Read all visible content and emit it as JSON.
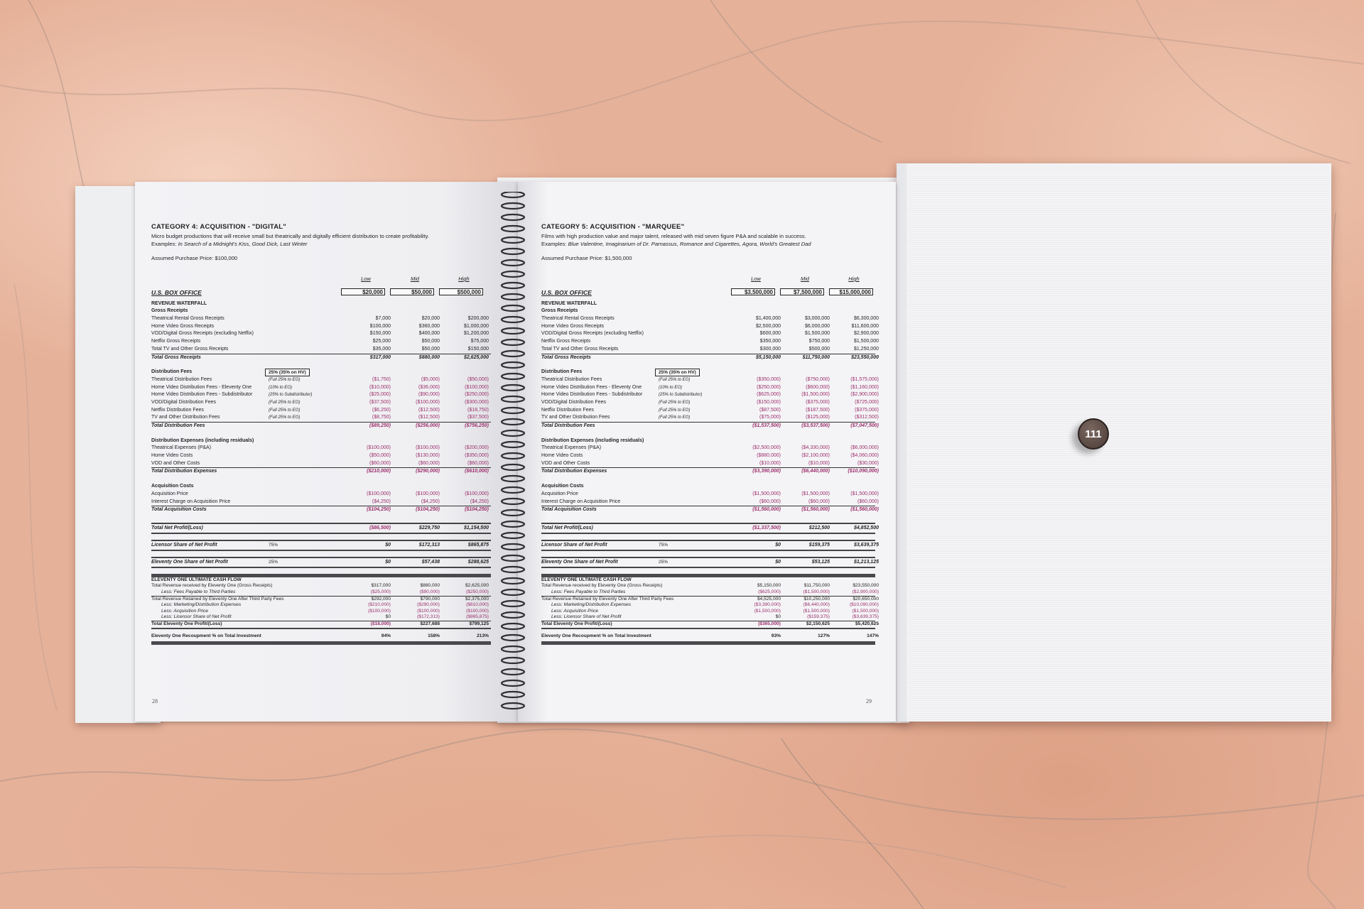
{
  "badge": {
    "label": "111"
  },
  "colors": {
    "negative": "#9c2f6c",
    "marble": "#e6b199",
    "page": "#f4f4f6"
  },
  "pages": [
    {
      "page_number": "28",
      "title": "CATEGORY 4:  ACQUISITION - \"DIGITAL\"",
      "description": "Micro budget productions that will receive small but theatrically and digitally efficient distribution to create profitability.",
      "examples_label": "Examples: ",
      "examples": "In Search of a Midnight's Kiss, Good Dick, Last Winter",
      "assumed": "Assumed Purchase Price: $100,000",
      "columns": [
        "Low",
        "Mid",
        "High"
      ],
      "box_office": {
        "label": "U.S. BOX OFFICE",
        "values": [
          "$20,000",
          "$50,000",
          "$500,000"
        ]
      },
      "waterfall_label": "REVENUE WATERFALL",
      "groups": [
        {
          "heading": "Gross Receipts",
          "rows": [
            {
              "label": "Theatrical Rental Gross Receipts",
              "values": [
                "$7,000",
                "$20,000",
                "$200,000"
              ]
            },
            {
              "label": "Home Video Gross Receipts",
              "values": [
                "$100,000",
                "$360,000",
                "$1,000,000"
              ]
            },
            {
              "label": "VOD/Digital Gross Receipts (excluding Netflix)",
              "values": [
                "$150,000",
                "$400,000",
                "$1,200,000"
              ]
            },
            {
              "label": "Netflix Gross Receipts",
              "values": [
                "$25,000",
                "$50,000",
                "$75,000"
              ]
            },
            {
              "label": "Total TV and Other Gross Receipts",
              "values": [
                "$35,000",
                "$50,000",
                "$150,000"
              ]
            }
          ],
          "total": {
            "label": "Total Gross Receipts",
            "values": [
              "$317,000",
              "$880,000",
              "$2,625,000"
            ]
          }
        },
        {
          "heading": "Distribution Fees",
          "note_box": "25% (35% on HV)",
          "rows": [
            {
              "label": "Theatrical Distribution Fees",
              "note": "(Full 25% to EO)",
              "values": [
                "($1,750)",
                "($5,000)",
                "($50,000)"
              ]
            },
            {
              "label": "Home Video Distribution Fees - Eleventy One",
              "note": "(10% to EO)",
              "values": [
                "($10,000)",
                "($36,000)",
                "($100,000)"
              ]
            },
            {
              "label": "Home Video Distribution Fees - Subdistributor",
              "note": "(25% to Subdistributor)",
              "values": [
                "($25,000)",
                "($90,000)",
                "($250,000)"
              ]
            },
            {
              "label": "VOD/Digital Distribution Fees",
              "note": "(Full 25% to EO)",
              "values": [
                "($37,500)",
                "($100,000)",
                "($300,000)"
              ]
            },
            {
              "label": "Netflix Distribution Fees",
              "note": "(Full 25% to EO)",
              "values": [
                "($6,250)",
                "($12,500)",
                "($18,750)"
              ]
            },
            {
              "label": "TV and Other Distribution Fees",
              "note": "(Full 25% to EO)",
              "values": [
                "($8,750)",
                "($12,500)",
                "($37,500)"
              ]
            }
          ],
          "total": {
            "label": "Total Distribution Fees",
            "values": [
              "($89,250)",
              "($256,000)",
              "($756,250)"
            ]
          }
        },
        {
          "heading": "Distribution Expenses (including residuals)",
          "rows": [
            {
              "label": "Theatrical Expenses (P&A)",
              "values": [
                "($100,000)",
                "($100,000)",
                "($200,000)"
              ]
            },
            {
              "label": "Home Video Costs",
              "values": [
                "($50,000)",
                "($130,000)",
                "($350,000)"
              ]
            },
            {
              "label": "VOD and Other Costs",
              "values": [
                "($60,000)",
                "($60,000)",
                "($60,000)"
              ]
            }
          ],
          "total": {
            "label": "Total Distribution Expenses",
            "values": [
              "($210,000)",
              "($290,000)",
              "($610,000)"
            ]
          }
        },
        {
          "heading": "Acquisition Costs",
          "rows": [
            {
              "label": "Acquisition Price",
              "values": [
                "($100,000)",
                "($100,000)",
                "($100,000)"
              ]
            },
            {
              "label": "Interest Charge on Acquisition Price",
              "values": [
                "($4,250)",
                "($4,250)",
                "($4,250)"
              ]
            }
          ],
          "total": {
            "label": "Total Acquisition Costs",
            "values": [
              "($104,250)",
              "($104,250)",
              "($104,250)"
            ]
          }
        }
      ],
      "summary": [
        {
          "label": "Total Net Profit/(Loss)",
          "values": [
            "($86,500)",
            "$229,750",
            "$1,154,500"
          ]
        },
        {
          "label": "Licensor Share of Net Profit",
          "note": "75%",
          "values": [
            "$0",
            "$172,313",
            "$865,875"
          ]
        },
        {
          "label": "Eleventy One Share of Net Profit",
          "note": "25%",
          "values": [
            "$0",
            "$57,438",
            "$288,625"
          ]
        }
      ],
      "cash_flow": {
        "heading": "ELEVENTY ONE ULTIMATE CASH FLOW",
        "rows": [
          {
            "label": "Total Revenue received by Eleventy One (Gross Receipts)",
            "values": [
              "$317,000",
              "$880,000",
              "$2,625,000"
            ]
          },
          {
            "label": "Less: Fees Payable to Third Parties",
            "indent": true,
            "values": [
              "($25,000)",
              "($90,000)",
              "($250,000)"
            ]
          },
          {
            "label": "Total Revenue Retained by Eleventy One After Third Party Fees",
            "sep": true,
            "values": [
              "$292,000",
              "$790,000",
              "$2,375,000"
            ]
          },
          {
            "label": "Less: Marketing/Distribution Expenses",
            "indent": true,
            "values": [
              "($210,000)",
              "($290,000)",
              "($610,000)"
            ]
          },
          {
            "label": "Less: Acquisition Price",
            "indent": true,
            "values": [
              "($100,000)",
              "($100,000)",
              "($100,000)"
            ]
          },
          {
            "label": "Less: Licensor Share of Net Profit",
            "indent": true,
            "values": [
              "$0",
              "($172,313)",
              "($865,875)"
            ]
          }
        ],
        "total": {
          "label": "Total Eleventy One Profit/(Loss)",
          "values": [
            "($18,000)",
            "$227,688",
            "$799,125"
          ]
        },
        "recoupment": {
          "label": "Eleventy One Recoupment % on Total Investment",
          "values": [
            "94%",
            "158%",
            "213%"
          ]
        }
      }
    },
    {
      "page_number": "29",
      "title": "CATEGORY 5:  ACQUISITION - \"MARQUEE\"",
      "description": "Films with high production value and major talent, released with mid seven figure P&A and scalable in success.",
      "examples_label": "Examples: ",
      "examples": "Blue Valentine, Imaginarium of Dr. Parnassus, Romance and Cigarettes, Agora, World's Greatest Dad",
      "assumed": "Assumed Purchase Price: $1,500,000",
      "columns": [
        "Low",
        "Mid",
        "High"
      ],
      "box_office": {
        "label": "U.S. BOX OFFICE",
        "values": [
          "$3,500,000",
          "$7,500,000",
          "$15,000,000"
        ]
      },
      "waterfall_label": "REVENUE WATERFALL",
      "groups": [
        {
          "heading": "Gross Receipts",
          "rows": [
            {
              "label": "Theatrical Rental Gross Receipts",
              "values": [
                "$1,400,000",
                "$3,000,000",
                "$6,300,000"
              ]
            },
            {
              "label": "Home Video Gross Receipts",
              "values": [
                "$2,500,000",
                "$6,000,000",
                "$11,600,000"
              ]
            },
            {
              "label": "VOD/Digital Gross Receipts (excluding Netflix)",
              "values": [
                "$600,000",
                "$1,500,000",
                "$2,900,000"
              ]
            },
            {
              "label": "Netflix Gross Receipts",
              "values": [
                "$350,000",
                "$750,000",
                "$1,500,000"
              ]
            },
            {
              "label": "Total TV and Other Gross Receipts",
              "values": [
                "$300,000",
                "$500,000",
                "$1,250,000"
              ]
            }
          ],
          "total": {
            "label": "Total Gross Receipts",
            "values": [
              "$5,150,000",
              "$11,750,000",
              "$23,550,000"
            ]
          }
        },
        {
          "heading": "Distribution Fees",
          "note_box": "25% (35% on HV)",
          "rows": [
            {
              "label": "Theatrical Distribution Fees",
              "note": "(Full 25% to EO)",
              "values": [
                "($350,000)",
                "($750,000)",
                "($1,575,000)"
              ]
            },
            {
              "label": "Home Video Distribution Fees - Eleventy One",
              "note": "(10% to EO)",
              "values": [
                "($250,000)",
                "($600,000)",
                "($1,160,000)"
              ]
            },
            {
              "label": "Home Video Distribution Fees - Subdistributor",
              "note": "(25% to Subdistributor)",
              "values": [
                "($625,000)",
                "($1,500,000)",
                "($2,900,000)"
              ]
            },
            {
              "label": "VOD/Digital Distribution Fees",
              "note": "(Full 25% to EO)",
              "values": [
                "($150,000)",
                "($375,000)",
                "($725,000)"
              ]
            },
            {
              "label": "Netflix Distribution Fees",
              "note": "(Full 25% to EO)",
              "values": [
                "($87,500)",
                "($187,500)",
                "($375,000)"
              ]
            },
            {
              "label": "TV and Other Distribution Fees",
              "note": "(Full 25% to EO)",
              "values": [
                "($75,000)",
                "($125,000)",
                "($312,500)"
              ]
            }
          ],
          "total": {
            "label": "Total Distribution Fees",
            "values": [
              "($1,537,500)",
              "($3,537,500)",
              "($7,047,500)"
            ]
          }
        },
        {
          "heading": "Distribution Expenses (including residuals)",
          "rows": [
            {
              "label": "Theatrical Expenses (P&A)",
              "values": [
                "($2,500,000)",
                "($4,330,000)",
                "($6,000,000)"
              ]
            },
            {
              "label": "Home Video Costs",
              "values": [
                "($880,000)",
                "($2,100,000)",
                "($4,060,000)"
              ]
            },
            {
              "label": "VOD and Other Costs",
              "values": [
                "($10,000)",
                "($10,000)",
                "($30,000)"
              ]
            }
          ],
          "total": {
            "label": "Total Distribution Expenses",
            "values": [
              "($3,390,000)",
              "($6,440,000)",
              "($10,090,000)"
            ]
          }
        },
        {
          "heading": "Acquisition Costs",
          "rows": [
            {
              "label": "Acquisition Price",
              "values": [
                "($1,500,000)",
                "($1,500,000)",
                "($1,500,000)"
              ]
            },
            {
              "label": "Interest Charge on Acquisition Price",
              "values": [
                "($60,000)",
                "($60,000)",
                "($60,000)"
              ]
            }
          ],
          "total": {
            "label": "Total Acquisition Costs",
            "values": [
              "($1,560,000)",
              "($1,560,000)",
              "($1,560,000)"
            ]
          }
        }
      ],
      "summary": [
        {
          "label": "Total Net Profit/(Loss)",
          "values": [
            "($1,337,500)",
            "$212,500",
            "$4,852,500"
          ]
        },
        {
          "label": "Licensor Share of Net Profit",
          "note": "75%",
          "values": [
            "$0",
            "$159,375",
            "$3,639,375"
          ]
        },
        {
          "label": "Eleventy One Share of Net Profit",
          "note": "25%",
          "values": [
            "$0",
            "$53,125",
            "$1,213,125"
          ]
        }
      ],
      "cash_flow": {
        "heading": "ELEVENTY ONE ULTIMATE CASH FLOW",
        "rows": [
          {
            "label": "Total Revenue received by Eleventy One (Gross Receipts)",
            "values": [
              "$5,150,000",
              "$11,750,000",
              "$23,550,000"
            ]
          },
          {
            "label": "Less: Fees Payable to Third Parties",
            "indent": true,
            "values": [
              "($625,000)",
              "($1,500,000)",
              "($2,900,000)"
            ]
          },
          {
            "label": "Total Revenue Retained by Eleventy One After Third Party Fees",
            "sep": true,
            "values": [
              "$4,525,000",
              "$10,250,000",
              "$20,650,000"
            ]
          },
          {
            "label": "Less: Marketing/Distribution Expenses",
            "indent": true,
            "values": [
              "($3,390,000)",
              "($6,440,000)",
              "($10,090,000)"
            ]
          },
          {
            "label": "Less: Acquisition Price",
            "indent": true,
            "values": [
              "($1,500,000)",
              "($1,500,000)",
              "($1,500,000)"
            ]
          },
          {
            "label": "Less: Licensor Share of Net Profit",
            "indent": true,
            "values": [
              "$0",
              "($159,375)",
              "($3,639,375)"
            ]
          }
        ],
        "total": {
          "label": "Total Eleventy One Profit/(Loss)",
          "values": [
            "($365,000)",
            "$2,150,625",
            "$5,420,625"
          ]
        },
        "recoupment": {
          "label": "Eleventy One Recoupment % on Total Investment",
          "values": [
            "93%",
            "127%",
            "147%"
          ]
        }
      }
    }
  ]
}
